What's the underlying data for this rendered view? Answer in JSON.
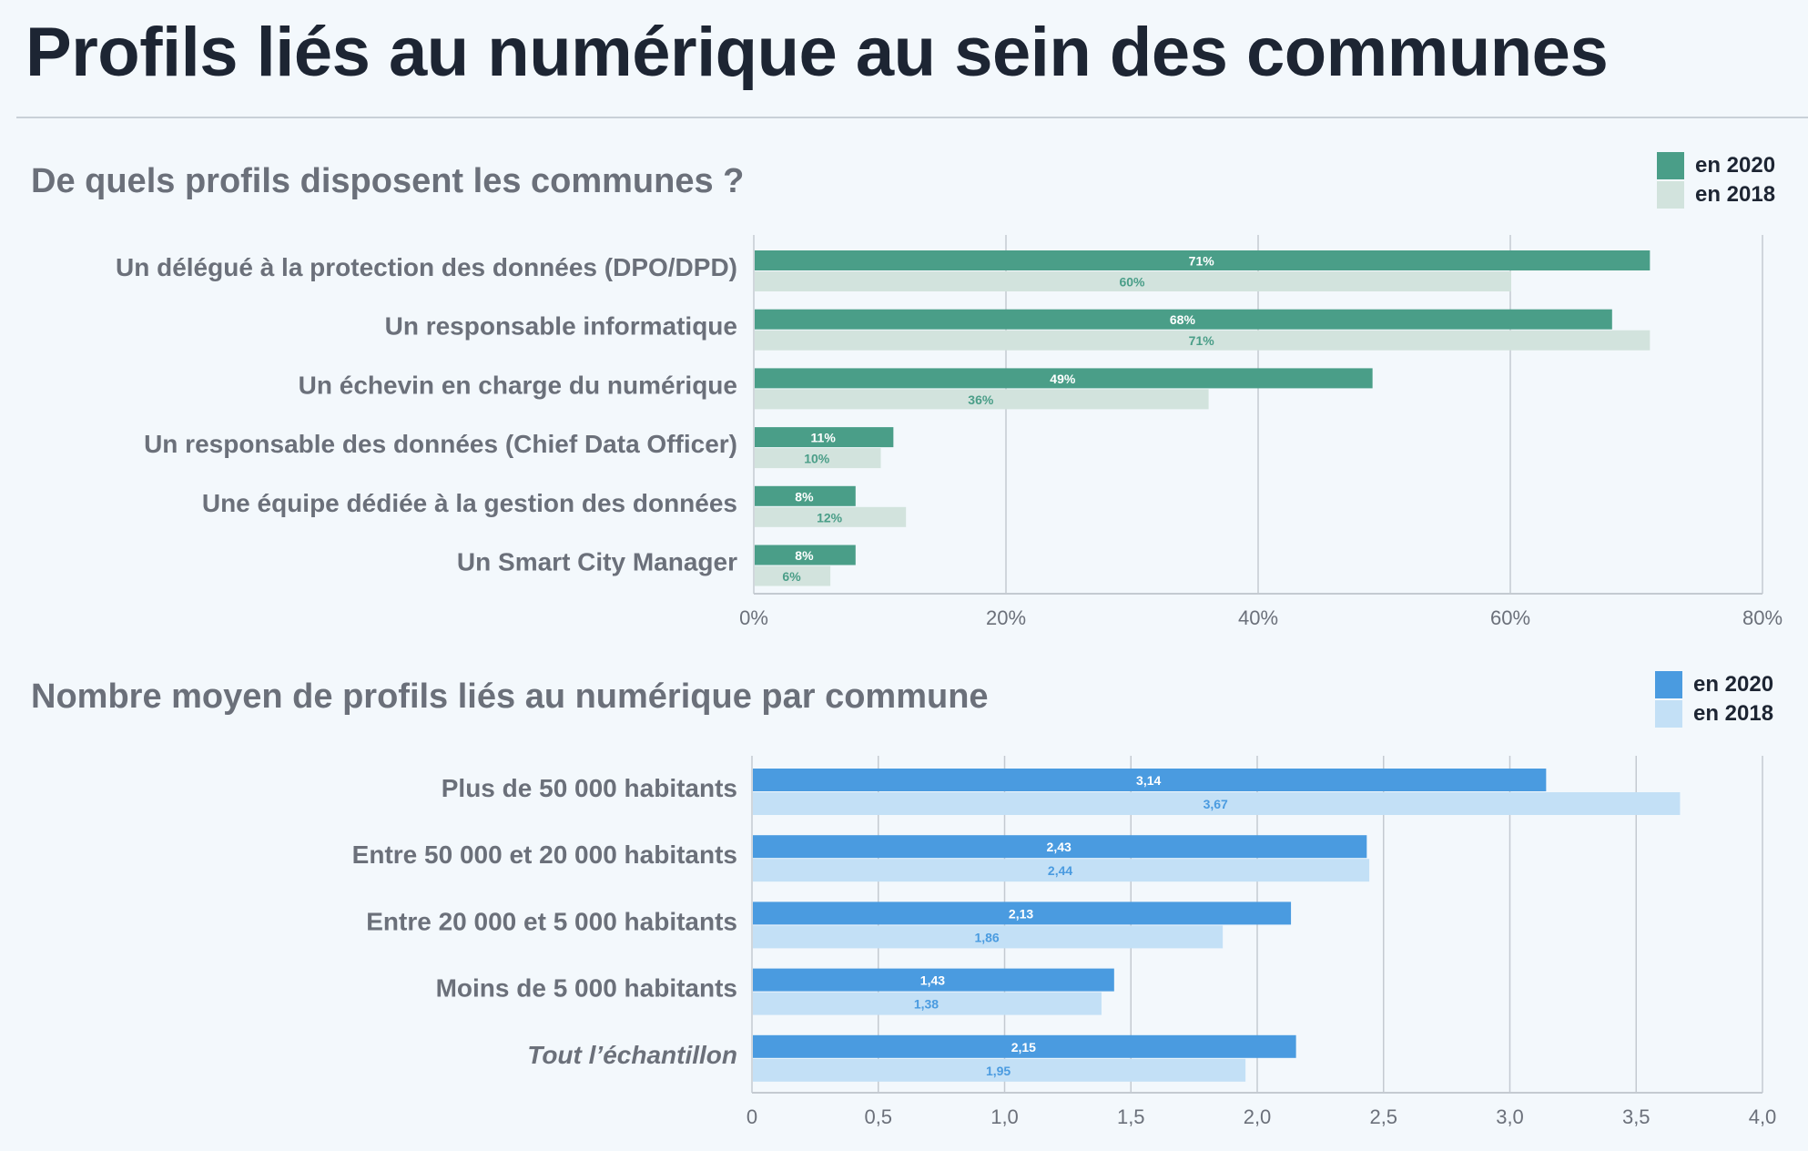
{
  "page": {
    "title": "Profils liés au numérique au sein des communes"
  },
  "chart_data": [
    {
      "type": "bar",
      "orientation": "horizontal",
      "title": "De quels profils disposent les communes ?",
      "categories": [
        "Un délégué à la protection des données (DPO/DPD)",
        "Un responsable informatique",
        "Un échevin en charge du numérique",
        "Un responsable des données (Chief Data Officer)",
        "Une équipe dédiée à la gestion des données",
        "Un Smart City Manager"
      ],
      "series": [
        {
          "name": "en 2020",
          "values": [
            71,
            68,
            49,
            11,
            8,
            8
          ],
          "labels": [
            "71%",
            "68%",
            "49%",
            "11%",
            "8%",
            "8%"
          ],
          "color": "#4a9e88",
          "label_color": "#ffffff"
        },
        {
          "name": "en 2018",
          "values": [
            60,
            71,
            36,
            10,
            12,
            6
          ],
          "labels": [
            "60%",
            "71%",
            "36%",
            "10%",
            "12%",
            "6%"
          ],
          "color": "#d2e3dd",
          "label_color": "#4a9e88"
        }
      ],
      "xlim": [
        0,
        80
      ],
      "ticks": [
        0,
        20,
        40,
        60,
        80
      ],
      "tick_labels": [
        "0%",
        "20%",
        "40%",
        "60%",
        "80%"
      ],
      "grid": true,
      "legend_position": "top-right"
    },
    {
      "type": "bar",
      "orientation": "horizontal",
      "title": "Nombre moyen de profils liés au numérique par commune",
      "categories": [
        "Plus de 50 000 habitants",
        "Entre 50 000 et 20 000 habitants",
        "Entre 20 000 et 5 000 habitants",
        "Moins de 5 000 habitants",
        "Tout l’échantillon"
      ],
      "italic_categories": [
        4
      ],
      "series": [
        {
          "name": "en 2020",
          "values": [
            3.14,
            2.43,
            2.13,
            1.43,
            2.15
          ],
          "labels": [
            "3,14",
            "2,43",
            "2,13",
            "1,43",
            "2,15"
          ],
          "color": "#4a9be0",
          "label_color": "#ffffff"
        },
        {
          "name": "en 2018",
          "values": [
            3.67,
            2.44,
            1.86,
            1.38,
            1.95
          ],
          "labels": [
            "3,67",
            "2,44",
            "1,86",
            "1,38",
            "1,95"
          ],
          "color": "#c3e0f6",
          "label_color": "#4a9be0"
        }
      ],
      "xlim": [
        0,
        4
      ],
      "ticks": [
        0,
        0.5,
        1,
        1.5,
        2,
        2.5,
        3,
        3.5,
        4
      ],
      "tick_labels": [
        "0",
        "0,5",
        "1,0",
        "1,5",
        "2,0",
        "2,5",
        "3,0",
        "3,5",
        "4,0"
      ],
      "grid": true,
      "legend_position": "top-right"
    }
  ]
}
